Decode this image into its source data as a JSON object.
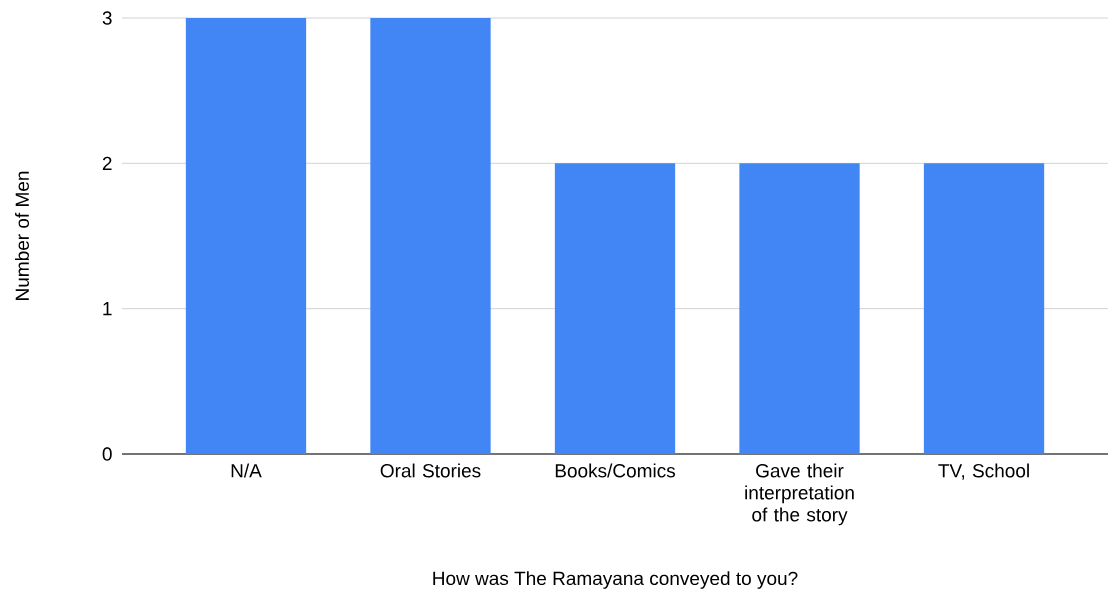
{
  "chart_data": {
    "type": "bar",
    "categories": [
      "N/A",
      "Oral Stories",
      "Books/Comics",
      "Gave their interpretation of the story",
      "TV, School"
    ],
    "values": [
      3,
      3,
      2,
      2,
      2
    ],
    "color": "#4285f4",
    "xlabel": "How was The Ramayana conveyed to you?",
    "ylabel": "Number of Men",
    "ylim": [
      0,
      3
    ],
    "yticks": [
      0,
      1,
      2,
      3
    ],
    "grid": "y"
  }
}
